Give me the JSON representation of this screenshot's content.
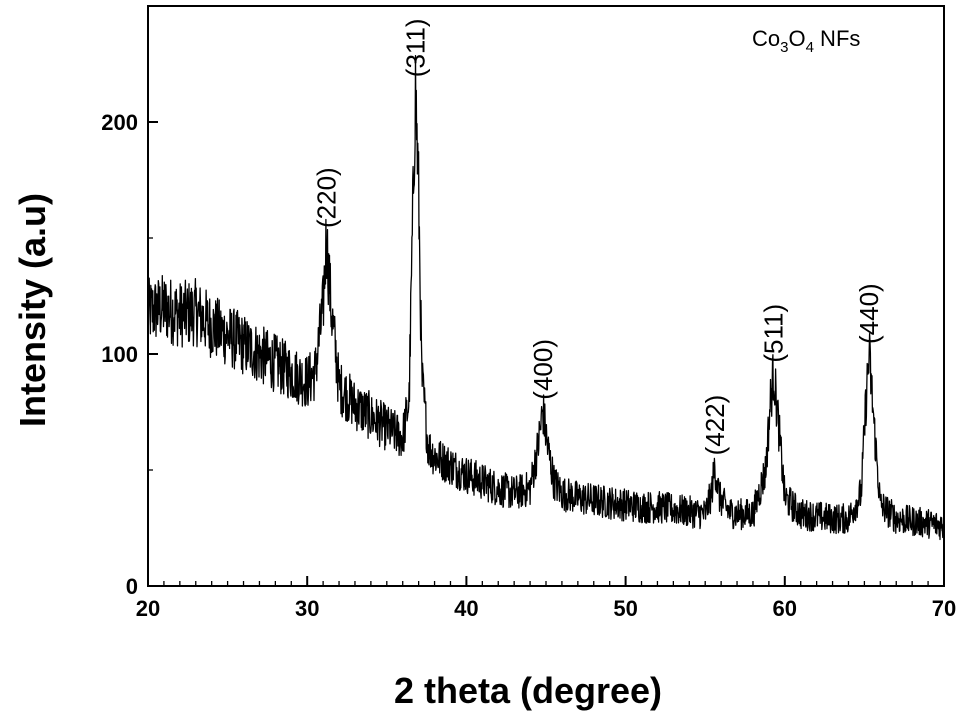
{
  "chart_data": {
    "type": "line",
    "xlabel": "2 theta (degree)",
    "ylabel": "Intensity (a.u)",
    "xlim": [
      20,
      70
    ],
    "ylim": [
      0,
      250
    ],
    "xticks": [
      20,
      30,
      40,
      50,
      60,
      70
    ],
    "yticks": [
      0,
      100,
      200
    ],
    "grid": false,
    "legend": "Co3O4 NFs",
    "legend_parts": {
      "prefix": "Co",
      "sub1": "3",
      "middle": "O",
      "sub2": "4",
      "suffix": " NFs"
    },
    "legend_placement": "top-right",
    "series": [
      {
        "x": [
          20,
          21,
          22,
          23,
          24,
          25,
          26,
          27,
          28,
          29,
          30,
          30.5,
          31.0,
          31.2,
          31.5,
          32,
          33,
          34,
          35,
          36,
          36.4,
          36.6,
          36.8,
          37.0,
          37.2,
          37.6,
          38,
          39,
          40,
          41,
          42,
          43,
          44,
          44.5,
          44.8,
          45.1,
          45.5,
          46,
          47,
          48,
          49,
          50,
          51,
          52,
          53,
          54,
          55,
          55.4,
          55.6,
          55.9,
          56.5,
          57,
          58,
          58.8,
          59.1,
          59.3,
          59.6,
          60,
          61,
          62,
          63,
          64,
          64.8,
          65.1,
          65.3,
          65.6,
          66,
          67,
          68,
          69,
          70
        ],
        "y": [
          118,
          120,
          117,
          118,
          112,
          108,
          104,
          100,
          96,
          92,
          88,
          92,
          120,
          150,
          120,
          86,
          78,
          73,
          68,
          64,
          80,
          150,
          215,
          170,
          90,
          60,
          56,
          52,
          48,
          45,
          42,
          40,
          42,
          60,
          76,
          60,
          45,
          40,
          38,
          37,
          36,
          35,
          34,
          34,
          33,
          32,
          31,
          40,
          52,
          38,
          32,
          31,
          31,
          50,
          80,
          92,
          70,
          38,
          31,
          30,
          29,
          29,
          40,
          80,
          100,
          70,
          35,
          29,
          28,
          27,
          26
        ]
      }
    ],
    "annotations": [
      {
        "text": "(220)",
        "x": 31.2,
        "y": 150
      },
      {
        "text": "(311)",
        "x": 36.8,
        "y": 215
      },
      {
        "text": "(400)",
        "x": 44.8,
        "y": 76
      },
      {
        "text": "(422)",
        "x": 55.6,
        "y": 52
      },
      {
        "text": "(511)",
        "x": 59.3,
        "y": 92
      },
      {
        "text": "(440)",
        "x": 65.3,
        "y": 100
      }
    ]
  }
}
